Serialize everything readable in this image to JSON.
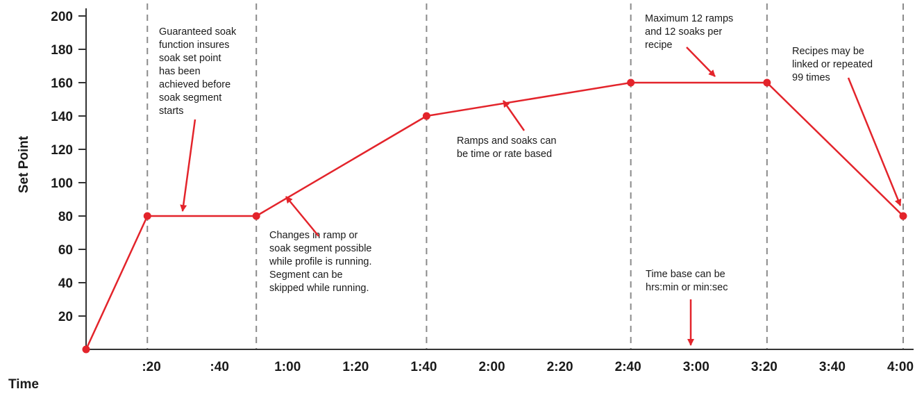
{
  "chart_data": {
    "type": "line",
    "xlabel": "Time",
    "ylabel": "Set Point",
    "x_ticks": [
      ":20",
      ":40",
      "1:00",
      "1:20",
      "1:40",
      "2:00",
      "2:20",
      "2:40",
      "3:00",
      "3:20",
      "3:40",
      "4:00"
    ],
    "y_ticks": [
      20,
      40,
      60,
      80,
      100,
      120,
      140,
      160,
      180,
      200
    ],
    "xlim_minutes": [
      0,
      240
    ],
    "ylim": [
      0,
      200
    ],
    "segment_boundaries": [
      "0:18",
      "0:50",
      "1:40",
      "2:40",
      "3:20",
      "4:00"
    ],
    "series": [
      {
        "x": [
          "0:00",
          "0:18",
          "0:50",
          "1:40",
          "2:40",
          "3:20",
          "4:00"
        ],
        "y": [
          0,
          80,
          80,
          140,
          160,
          160,
          80
        ],
        "color": "#e3242b"
      }
    ],
    "grid": "vertical dashed lines at segment boundaries",
    "annotations": [
      {
        "lines": [
          "Guaranteed soak",
          "function insures",
          "soak set point",
          "has been",
          "achieved before",
          "soak segment",
          "starts"
        ]
      },
      {
        "lines": [
          "Changes in ramp or",
          "soak segment possible",
          "while profile is running.",
          "Segment can be",
          "skipped while running."
        ]
      },
      {
        "lines": [
          "Ramps and soaks can",
          "be time or rate based"
        ]
      },
      {
        "lines": [
          "Maximum 12 ramps",
          "and 12 soaks per",
          "recipe"
        ]
      },
      {
        "lines": [
          "Recipes may be",
          "linked or repeated",
          "99 times"
        ]
      },
      {
        "lines": [
          "Time base can be",
          "hrs:min or min:sec"
        ]
      }
    ]
  }
}
